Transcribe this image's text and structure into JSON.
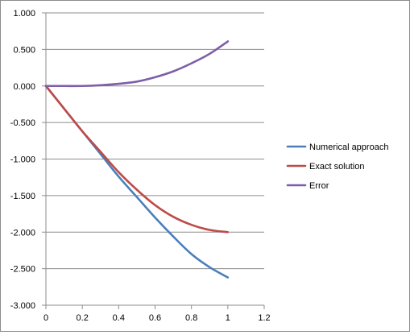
{
  "chart_data": {
    "type": "line",
    "title": "",
    "xlabel": "",
    "ylabel": "",
    "xlim": [
      0,
      1.2
    ],
    "ylim": [
      -3,
      1
    ],
    "x_ticks": [
      0,
      0.2,
      0.4,
      0.6,
      0.8,
      1,
      1.2
    ],
    "x_tick_labels": [
      "0",
      "0.2",
      "0.4",
      "0.6",
      "0.8",
      "1",
      "1.2"
    ],
    "y_ticks": [
      1,
      0.5,
      0,
      -0.5,
      -1,
      -1.5,
      -2,
      -2.5,
      -3
    ],
    "y_tick_labels": [
      "1.000",
      "0.500",
      "0.000",
      "-0.500",
      "-1.000",
      "-1.500",
      "-2.000",
      "-2.500",
      "-3.000"
    ],
    "grid": "horizontal",
    "legend_position": "right",
    "x": [
      0,
      0.1,
      0.2,
      0.3,
      0.4,
      0.5,
      0.6,
      0.7,
      0.8,
      0.9,
      1.0
    ],
    "series": [
      {
        "name": "Numerical approach",
        "color": "#4a7ebb",
        "values": [
          0,
          -0.31,
          -0.62,
          -0.93,
          -1.24,
          -1.52,
          -1.8,
          -2.06,
          -2.3,
          -2.48,
          -2.62
        ]
      },
      {
        "name": "Exact solution",
        "color": "#be4b48",
        "values": [
          0,
          -0.31,
          -0.62,
          -0.9,
          -1.18,
          -1.42,
          -1.63,
          -1.79,
          -1.9,
          -1.97,
          -2.0
        ]
      },
      {
        "name": "Error",
        "color": "#7e5ea8",
        "values": [
          0,
          0,
          0,
          0.01,
          0.03,
          0.06,
          0.12,
          0.2,
          0.31,
          0.44,
          0.61
        ]
      }
    ]
  }
}
